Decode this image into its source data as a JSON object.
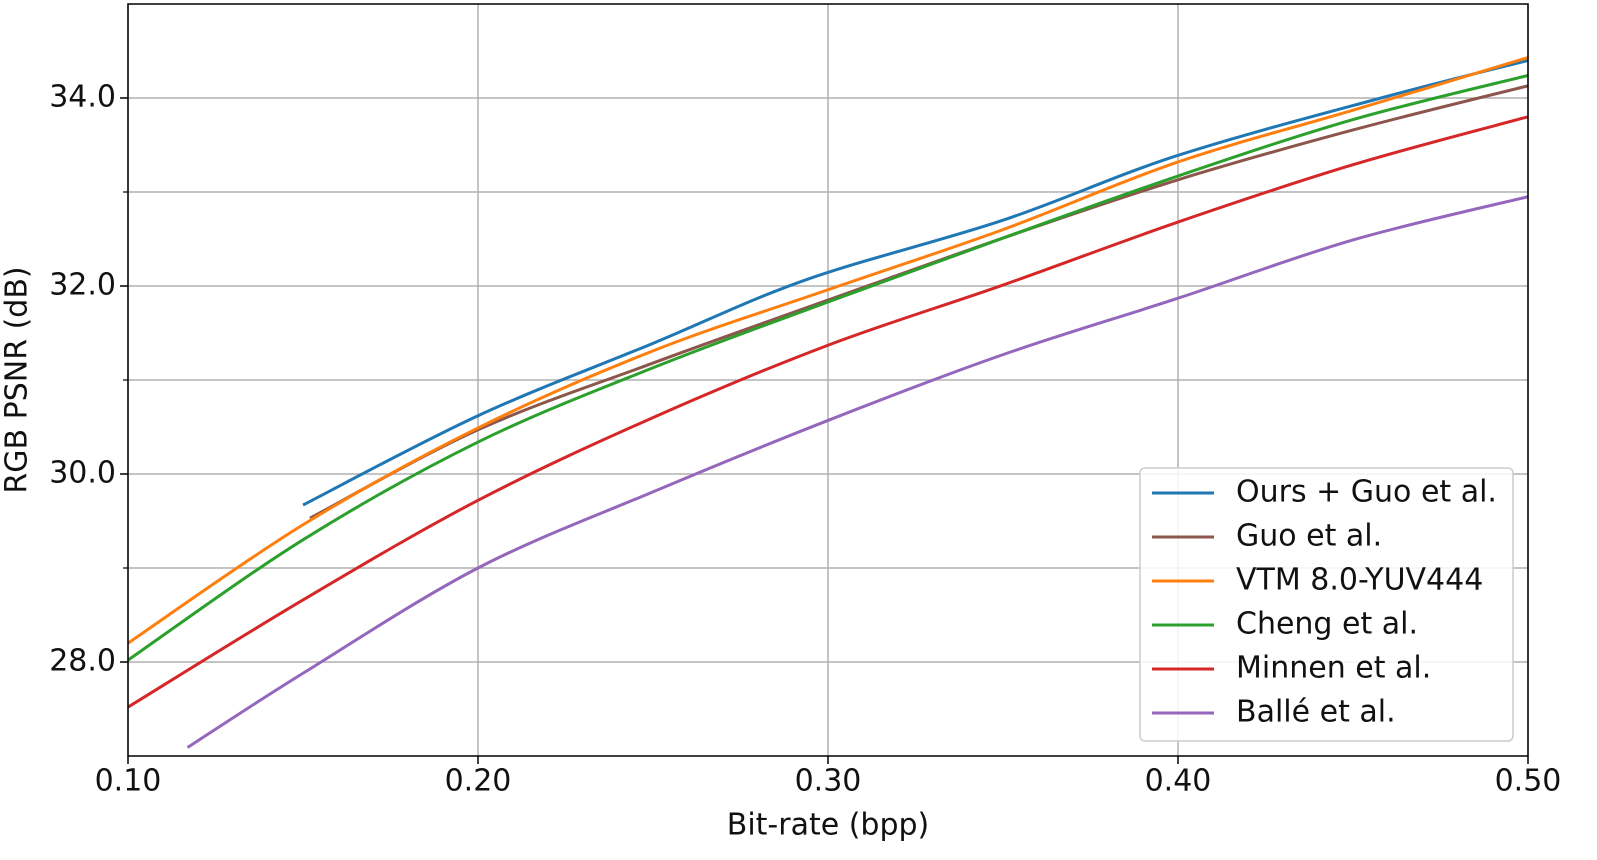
{
  "chart_data": {
    "type": "line",
    "xlabel": "Bit-rate (bpp)",
    "ylabel": "RGB PSNR (dB)",
    "xlim": [
      0.1,
      0.5
    ],
    "ylim": [
      27,
      35
    ],
    "xticks": [
      {
        "value": 0.1,
        "label": "0.10"
      },
      {
        "value": 0.2,
        "label": "0.20"
      },
      {
        "value": 0.3,
        "label": "0.30"
      },
      {
        "value": 0.4,
        "label": "0.40"
      },
      {
        "value": 0.5,
        "label": "0.50"
      }
    ],
    "yticks": [
      {
        "value": 28,
        "label": "28.0"
      },
      {
        "value": 30,
        "label": "30.0"
      },
      {
        "value": 32,
        "label": "32.0"
      },
      {
        "value": 34,
        "label": "34.0"
      }
    ],
    "yminor_ticks": [
      29,
      31,
      33
    ],
    "grid": true,
    "legend": "lower right",
    "series": [
      {
        "name": "Ours + Guo et al.",
        "color": "#1f77b4",
        "x": [
          0.15,
          0.2,
          0.25,
          0.294,
          0.35,
          0.4,
          0.46,
          0.5
        ],
        "values": [
          29.67,
          30.62,
          31.39,
          32.07,
          32.7,
          33.39,
          34.02,
          34.4
        ]
      },
      {
        "name": "Guo et al.",
        "color": "#8c564b",
        "x": [
          0.152,
          0.2,
          0.25,
          0.3,
          0.35,
          0.4,
          0.45,
          0.5
        ],
        "values": [
          29.53,
          30.47,
          31.18,
          31.85,
          32.51,
          33.13,
          33.66,
          34.13
        ]
      },
      {
        "name": "VTM 8.0-YUV444",
        "color": "#ff7f0e",
        "x": [
          0.1,
          0.15,
          0.2,
          0.25,
          0.3,
          0.35,
          0.4,
          0.45,
          0.5
        ],
        "values": [
          28.2,
          29.46,
          30.49,
          31.31,
          31.96,
          32.6,
          33.32,
          33.87,
          34.43
        ]
      },
      {
        "name": "Cheng et al.",
        "color": "#2ca02c",
        "x": [
          0.1,
          0.15,
          0.2,
          0.25,
          0.3,
          0.35,
          0.4,
          0.45,
          0.5
        ],
        "values": [
          28.02,
          29.3,
          30.34,
          31.13,
          31.83,
          32.51,
          33.17,
          33.77,
          34.24
        ]
      },
      {
        "name": "Minnen et al.",
        "color": "#d62728",
        "x": [
          0.1,
          0.15,
          0.2,
          0.25,
          0.3,
          0.35,
          0.4,
          0.45,
          0.5
        ],
        "values": [
          27.52,
          28.66,
          29.72,
          30.6,
          31.37,
          32.01,
          32.68,
          33.29,
          33.8
        ]
      },
      {
        "name": "Ballé et al.",
        "color": "#9467bd",
        "x": [
          0.117,
          0.15,
          0.2,
          0.25,
          0.3,
          0.35,
          0.4,
          0.45,
          0.5
        ],
        "values": [
          27.09,
          27.88,
          29.0,
          29.81,
          30.57,
          31.27,
          31.87,
          32.49,
          32.95
        ]
      }
    ]
  }
}
